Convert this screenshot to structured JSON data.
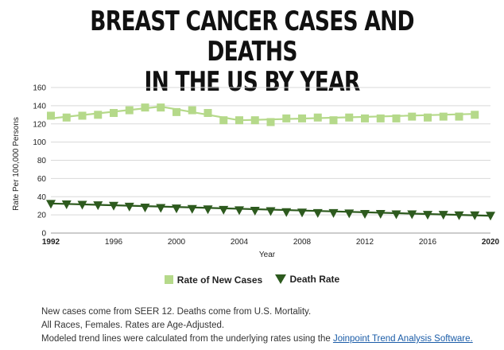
{
  "header": {
    "title_line1": "BREAST CANCER CASES AND DEATHS",
    "title_line2": "IN THE US BY YEAR"
  },
  "legend": {
    "new_cases": "Rate of New Cases",
    "death_rate": "Death Rate"
  },
  "notes": {
    "line1": "New cases come from SEER 12. Deaths come from U.S. Mortality.",
    "line2": "All Races, Females. Rates are Age-Adjusted.",
    "line3_prefix": "Modeled trend lines were calculated from the underlying rates using the ",
    "line3_link": "Joinpoint Trend Analysis Software."
  },
  "colors": {
    "new_cases": "#b5d98a",
    "death_rate": "#2d5a1e",
    "grid": "#d9d9d9"
  },
  "chart_data": {
    "type": "line",
    "xlabel": "Year",
    "ylabel": "Rate Per 100,000 Persons",
    "ylim": [
      0,
      160
    ],
    "xlim": [
      1992,
      2020
    ],
    "yticks": [
      0,
      20,
      40,
      60,
      80,
      100,
      120,
      140,
      160
    ],
    "xticks": [
      1992,
      1996,
      2000,
      2004,
      2008,
      2012,
      2016,
      2020
    ],
    "grid": "horizontal",
    "legend_position": "bottom",
    "series": [
      {
        "name": "Rate of New Cases",
        "marker": "square",
        "x": [
          1992,
          1993,
          1994,
          1995,
          1996,
          1997,
          1998,
          1999,
          2000,
          2001,
          2002,
          2003,
          2004,
          2005,
          2006,
          2007,
          2008,
          2009,
          2010,
          2011,
          2012,
          2013,
          2014,
          2015,
          2016,
          2017,
          2018,
          2019
        ],
        "y": [
          129,
          127,
          129,
          130,
          132,
          135,
          138,
          138,
          133,
          135,
          132,
          124,
          124,
          124,
          122,
          126,
          126,
          127,
          124,
          127,
          126,
          126,
          126,
          128,
          127,
          128,
          128,
          130
        ],
        "trend_x": [
          1992,
          1999,
          2004,
          2019
        ],
        "trend_y": [
          126,
          139,
          124,
          131
        ]
      },
      {
        "name": "Death Rate",
        "marker": "triangle-down",
        "x": [
          1992,
          1993,
          1994,
          1995,
          1996,
          1997,
          1998,
          1999,
          2000,
          2001,
          2002,
          2003,
          2004,
          2005,
          2006,
          2007,
          2008,
          2009,
          2010,
          2011,
          2012,
          2013,
          2014,
          2015,
          2016,
          2017,
          2018,
          2019,
          2020
        ],
        "y": [
          32,
          31.5,
          31,
          30.5,
          30,
          29,
          28,
          27.5,
          27,
          26.5,
          26,
          25.5,
          25,
          24.5,
          24,
          23,
          22.5,
          22,
          22,
          21.5,
          21,
          21,
          20.5,
          20.5,
          20,
          20,
          19.5,
          19.5,
          19
        ],
        "trend_x": [
          1992,
          2020
        ],
        "trend_y": [
          32.5,
          19
        ]
      }
    ]
  }
}
